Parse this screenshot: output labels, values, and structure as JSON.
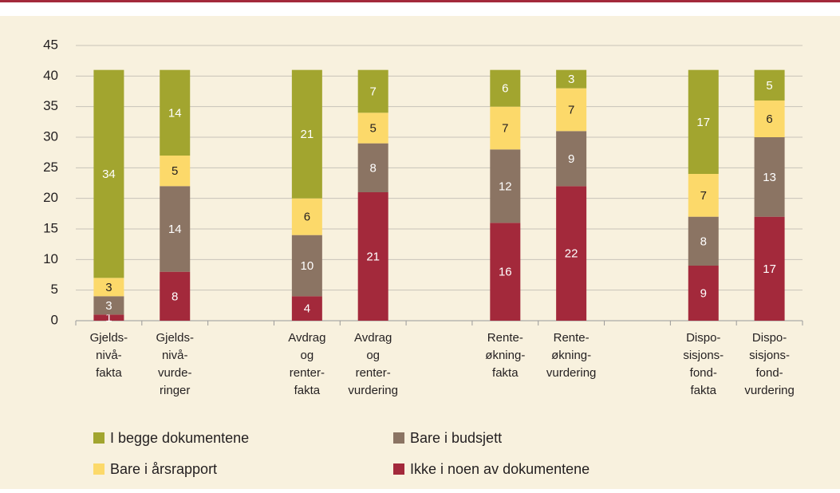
{
  "chart_data": {
    "type": "stacked-bar",
    "categories": [
      [
        "Gjelds-",
        "nivå-",
        "fakta"
      ],
      [
        "Gjelds-",
        "nivå-",
        "vurde-",
        "ringer"
      ],
      null,
      [
        "Avdrag",
        "og",
        "renter-",
        "fakta"
      ],
      [
        "Avdrag",
        "og",
        "renter-",
        "vurdering"
      ],
      null,
      [
        "Rente-",
        "økning-",
        "fakta"
      ],
      [
        "Rente-",
        "økning-",
        "vurdering"
      ],
      null,
      [
        "Dispo-",
        "sisjons-",
        "fond-",
        "fakta"
      ],
      [
        "Dispo-",
        "sisjons-",
        "fond-",
        "vurdering"
      ]
    ],
    "series": [
      {
        "name": "Ikke i noen av dokumentene",
        "color": "#a3293b",
        "values": [
          1,
          8,
          null,
          4,
          21,
          null,
          16,
          22,
          null,
          9,
          17
        ]
      },
      {
        "name": "Bare i budsjett",
        "color": "#8b7463",
        "values": [
          3,
          14,
          null,
          10,
          8,
          null,
          12,
          9,
          null,
          8,
          13
        ]
      },
      {
        "name": "Bare i årsrapport",
        "color": "#fcd96a",
        "values": [
          3,
          5,
          null,
          6,
          5,
          null,
          7,
          7,
          null,
          7,
          6
        ]
      },
      {
        "name": "I begge dokumentene",
        "color": "#a2a52f",
        "values": [
          34,
          14,
          null,
          21,
          7,
          null,
          6,
          3,
          null,
          17,
          5
        ]
      }
    ],
    "ylim": [
      0,
      45
    ],
    "yticks": [
      0,
      5,
      10,
      15,
      20,
      25,
      30,
      35,
      40,
      45
    ],
    "grid": true
  }
}
